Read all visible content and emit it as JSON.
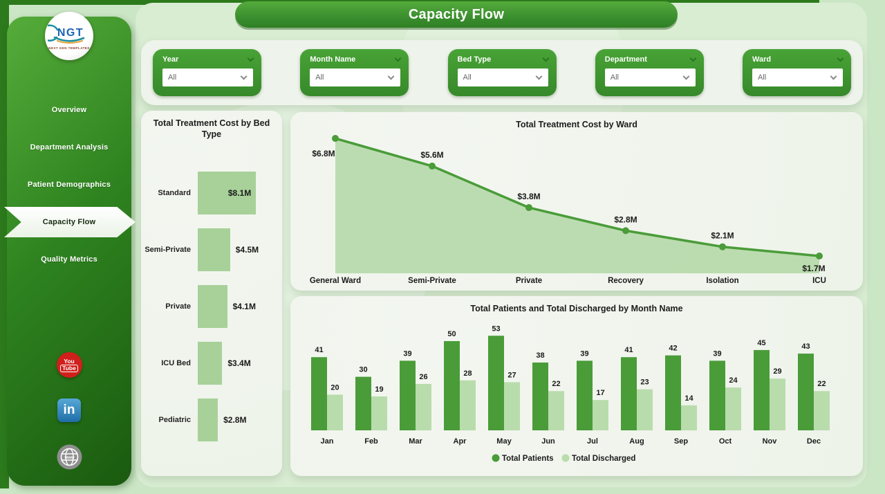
{
  "header": {
    "title": "Capacity Flow"
  },
  "sidebar": {
    "logo_text": "NGT",
    "logo_subtext": "NEXT GEN TEMPLATES",
    "items": [
      {
        "label": "Overview",
        "active": false
      },
      {
        "label": "Department Analysis",
        "active": false
      },
      {
        "label": "Patient Demographics",
        "active": false
      },
      {
        "label": "Capacity Flow",
        "active": true
      },
      {
        "label": "Quality Metrics",
        "active": false
      }
    ],
    "social": {
      "youtube_top": "You",
      "youtube_bottom": "Tube",
      "linkedin": "in",
      "website": "www"
    }
  },
  "filters": [
    {
      "label": "Year",
      "value": "All"
    },
    {
      "label": "Month Name",
      "value": "All"
    },
    {
      "label": "Bed Type",
      "value": "All"
    },
    {
      "label": "Department",
      "value": "All"
    },
    {
      "label": "Ward",
      "value": "All"
    }
  ],
  "colors": {
    "dark_green": "#4a9c39",
    "light_green": "#b9dcac",
    "area_fill": "#b5d9a9",
    "bar_bedtype": "#a7d199",
    "sidebar_dark": "#1a5a0f",
    "accent": "#3d9130"
  },
  "chart_data": [
    {
      "id": "bed_type",
      "type": "bar",
      "orientation": "horizontal",
      "title": "Total Treatment Cost by Bed Type",
      "categories": [
        "Standard",
        "Semi-Private",
        "Private",
        "ICU Bed",
        "Pediatric"
      ],
      "values": [
        8.1,
        4.5,
        4.1,
        3.4,
        2.8
      ],
      "labels": [
        "$8.1M",
        "$4.5M",
        "$4.1M",
        "$3.4M",
        "$2.8M"
      ],
      "xlabel": "",
      "ylabel": "",
      "grid": false
    },
    {
      "id": "ward_cost",
      "type": "area",
      "title": "Total Treatment Cost by Ward",
      "categories": [
        "General Ward",
        "Semi-Private",
        "Private",
        "Recovery",
        "Isolation",
        "ICU"
      ],
      "values": [
        6.8,
        5.6,
        3.8,
        2.8,
        2.1,
        1.7
      ],
      "labels": [
        "$6.8M",
        "$5.6M",
        "$3.8M",
        "$2.8M",
        "$2.1M",
        "$1.7M"
      ],
      "xlabel": "",
      "ylabel": "",
      "grid": false
    },
    {
      "id": "monthly",
      "type": "bar",
      "title": "Total Patients and Total Discharged by Month Name",
      "categories": [
        "Jan",
        "Feb",
        "Mar",
        "Apr",
        "May",
        "Jun",
        "Jul",
        "Aug",
        "Sep",
        "Oct",
        "Nov",
        "Dec"
      ],
      "series": [
        {
          "name": "Total Patients",
          "values": [
            41,
            30,
            39,
            50,
            53,
            38,
            39,
            41,
            42,
            39,
            45,
            43
          ]
        },
        {
          "name": "Total Discharged",
          "values": [
            20,
            19,
            26,
            28,
            27,
            22,
            17,
            23,
            14,
            24,
            29,
            22
          ]
        }
      ],
      "legend_position": "bottom",
      "grid": false
    }
  ]
}
